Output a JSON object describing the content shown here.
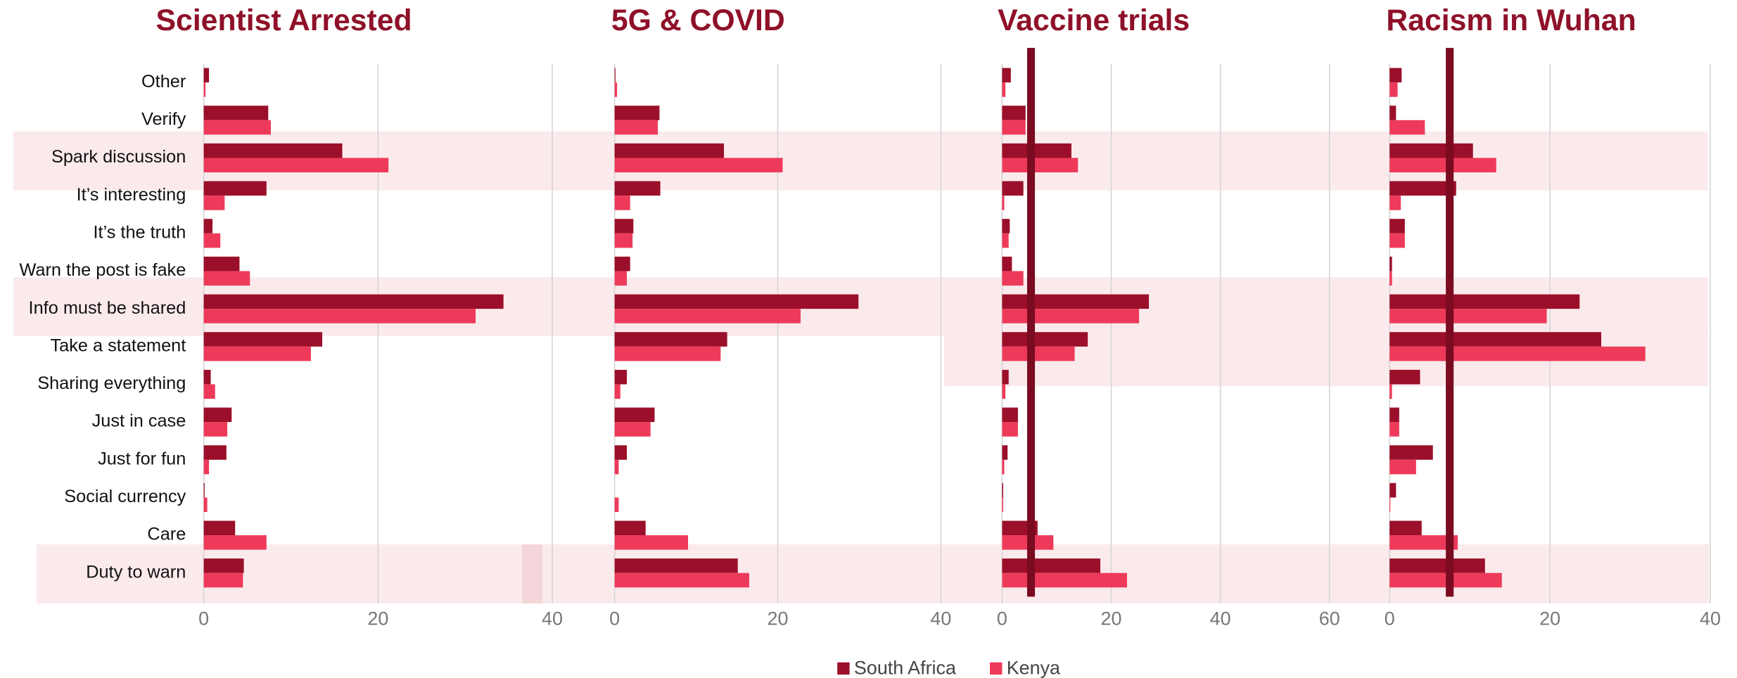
{
  "chart_data": [
    {
      "type": "bar",
      "title": "Scientist Arrested",
      "categories": [
        "Other",
        "Verify",
        "Spark discussion",
        "It’s interesting",
        "It’s the truth",
        "Warn the post is fake",
        "Info must be shared",
        "Take a statement",
        "Sharing everything",
        "Just in case",
        "Just for fun",
        "Social currency",
        "Care",
        "Duty to warn"
      ],
      "series": [
        {
          "name": "South Africa",
          "color": "#9b0f2a",
          "values": [
            0.6,
            7.4,
            15.9,
            7.2,
            1.0,
            4.1,
            34.4,
            13.6,
            0.8,
            3.2,
            2.6,
            0.1,
            3.6,
            4.6
          ]
        },
        {
          "name": "Kenya",
          "color": "#ee3a5a",
          "values": [
            0.2,
            7.7,
            21.2,
            2.4,
            1.9,
            5.3,
            31.2,
            12.3,
            1.3,
            2.7,
            0.6,
            0.4,
            7.2,
            4.5
          ]
        }
      ],
      "xlim": [
        0,
        40
      ],
      "xticks": [
        0,
        20,
        40
      ],
      "grid": true
    },
    {
      "type": "bar",
      "title": "5G & COVID",
      "series": [
        {
          "color": "#9b0f2a",
          "values": [
            0.1,
            5.5,
            13.4,
            5.6,
            2.3,
            1.9,
            29.9,
            13.8,
            1.5,
            4.9,
            1.5,
            0,
            3.8,
            15.1
          ]
        },
        {
          "color": "#ee3a5a",
          "values": [
            0.3,
            5.3,
            20.6,
            1.9,
            2.2,
            1.5,
            22.8,
            13.0,
            0.7,
            4.4,
            0.5,
            0.5,
            9.0,
            16.5
          ]
        }
      ],
      "xlim": [
        0,
        40
      ],
      "xticks": [
        0,
        20,
        40
      ],
      "grid": true
    },
    {
      "type": "bar",
      "title": "Vaccine trials",
      "series": [
        {
          "color": "#9b0f2a",
          "values": [
            1.6,
            4.3,
            12.7,
            3.9,
            1.4,
            1.8,
            26.9,
            15.7,
            1.2,
            2.9,
            1.0,
            0.2,
            6.5,
            18.0
          ]
        },
        {
          "color": "#ee3a5a",
          "values": [
            0.6,
            4.3,
            13.9,
            0.4,
            1.2,
            3.9,
            25.1,
            13.3,
            0.6,
            2.9,
            0.4,
            0.2,
            9.4,
            22.9
          ]
        }
      ],
      "xlim": [
        0,
        60
      ],
      "xticks": [
        0,
        20,
        40,
        60
      ],
      "grid": true,
      "reference_line": 5.3
    },
    {
      "type": "bar",
      "title": "Racism in Wuhan",
      "series": [
        {
          "color": "#9b0f2a",
          "values": [
            1.5,
            0.8,
            10.4,
            8.3,
            1.9,
            0.3,
            23.7,
            26.4,
            3.8,
            1.2,
            5.4,
            0.8,
            4.0,
            11.9
          ]
        },
        {
          "color": "#ee3a5a",
          "values": [
            1.0,
            4.4,
            13.3,
            1.4,
            1.9,
            0.3,
            19.6,
            31.9,
            0.3,
            1.2,
            3.3,
            0.1,
            8.5,
            14.0
          ]
        }
      ],
      "xlim": [
        0,
        40
      ],
      "xticks": [
        0,
        20,
        40
      ],
      "grid": true,
      "reference_line": 7.5
    }
  ]
}
